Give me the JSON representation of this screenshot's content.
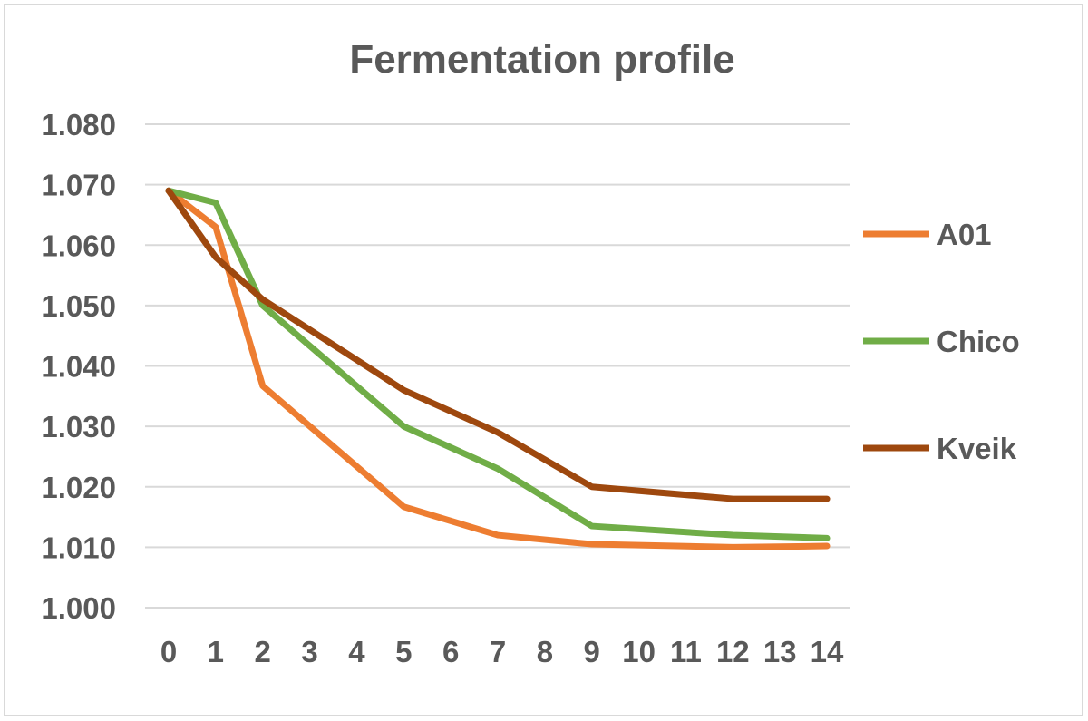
{
  "chart_data": {
    "type": "line",
    "title": "Fermentation profile",
    "xlabel": "",
    "ylabel": "",
    "x": [
      0,
      1,
      2,
      3,
      4,
      5,
      6,
      7,
      8,
      9,
      10,
      11,
      12,
      13,
      14
    ],
    "x_tick_labels": [
      "0",
      "1",
      "2",
      "3",
      "4",
      "5",
      "6",
      "7",
      "8",
      "9",
      "10",
      "11",
      "12",
      "13",
      "14"
    ],
    "y_tick_labels": [
      "1.000",
      "1.010",
      "1.020",
      "1.030",
      "1.040",
      "1.050",
      "1.060",
      "1.070",
      "1.080"
    ],
    "ylim": [
      1.0,
      1.08
    ],
    "grid": true,
    "legend_position": "right",
    "series": [
      {
        "name": "A01",
        "color": "#ED7D31",
        "values": [
          1.069,
          1.063,
          1.0367,
          null,
          null,
          1.0167,
          null,
          1.012,
          null,
          1.0105,
          null,
          null,
          1.01,
          null,
          1.0102
        ]
      },
      {
        "name": "Chico",
        "color": "#70AD47",
        "values": [
          1.069,
          1.067,
          1.05,
          null,
          null,
          1.03,
          null,
          1.023,
          null,
          1.0135,
          null,
          null,
          1.012,
          null,
          1.0115
        ]
      },
      {
        "name": "Kveik",
        "color": "#9E480E",
        "values": [
          1.069,
          1.058,
          1.051,
          null,
          null,
          1.036,
          null,
          1.029,
          null,
          1.02,
          null,
          null,
          1.018,
          null,
          1.018
        ]
      }
    ]
  }
}
